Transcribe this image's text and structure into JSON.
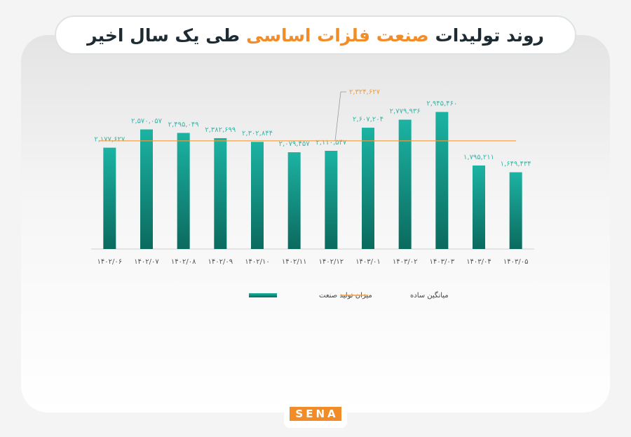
{
  "chart_data": {
    "type": "bar",
    "title_parts": [
      {
        "text": "روند تولیدات",
        "color": "#1f2b33"
      },
      {
        "text": "صنعت فلزات اساسی",
        "color": "#f28c28"
      },
      {
        "text": "طی یک سال اخیر",
        "color": "#1f2b33"
      }
    ],
    "categories": [
      "۱۴۰۲/۰۶",
      "۱۴۰۲/۰۷",
      "۱۴۰۲/۰۸",
      "۱۴۰۲/۰۹",
      "۱۴۰۲/۱۰",
      "۱۴۰۲/۱۱",
      "۱۴۰۲/۱۲",
      "۱۴۰۳/۰۱",
      "۱۴۰۳/۰۲",
      "۱۴۰۳/۰۳",
      "۱۴۰۳/۰۴",
      "۱۴۰۳/۰۵"
    ],
    "series": [
      {
        "name": "میزان تولید صنعت",
        "color": "#15a394",
        "values": [
          2177627,
          2570057,
          2495049,
          2382699,
          2302844,
          2079457,
          2110547,
          2607204,
          2779936,
          2945460,
          1795211,
          1649434
        ],
        "value_labels": [
          "۲,۱۷۷,۶۲۷",
          "۲,۵۷۰,۰۵۷",
          "۲,۴۹۵,۰۴۹",
          "۲,۳۸۲,۶۹۹",
          "۲,۳۰۲,۸۴۴",
          "۲,۰۷۹,۴۵۷",
          "۲,۱۱۰,۵۴۷",
          "۲,۶۰۷,۲۰۴",
          "۲,۷۷۹,۹۳۶",
          "۲,۹۴۵,۴۶۰",
          "۱,۷۹۵,۲۱۱",
          "۱,۶۴۹,۴۳۴"
        ]
      }
    ],
    "average": {
      "name": "میانگین ساده",
      "color": "#f39c3c",
      "value": 2324627,
      "value_label": "۲,۳۲۴,۶۲۷"
    },
    "ylim": [
      0,
      3000000
    ],
    "logo": "SENA"
  }
}
